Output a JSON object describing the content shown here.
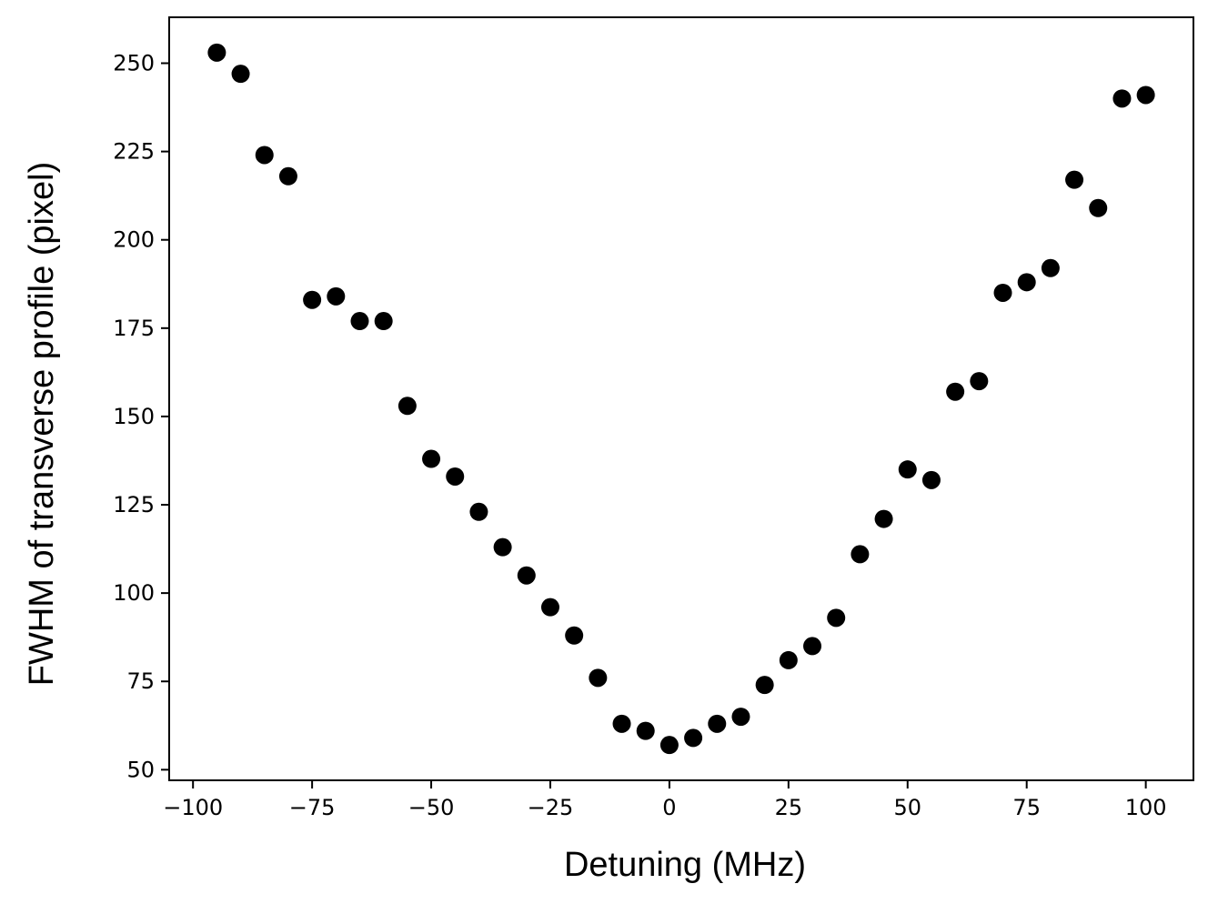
{
  "chart_data": {
    "type": "scatter",
    "xlabel": "Detuning (MHz)",
    "ylabel": "FWHM of transverse profile (pixel)",
    "xlim": [
      -105,
      110
    ],
    "ylim": [
      47,
      263
    ],
    "grid": false,
    "marker_color": "#000000",
    "x_ticks": [
      -100,
      -75,
      -50,
      -25,
      0,
      25,
      50,
      75,
      100
    ],
    "x_tick_labels": [
      "−100",
      "−75",
      "−50",
      "−25",
      "0",
      "25",
      "50",
      "75",
      "100"
    ],
    "y_ticks": [
      50,
      75,
      100,
      125,
      150,
      175,
      200,
      225,
      250
    ],
    "y_tick_labels": [
      "50",
      "75",
      "100",
      "125",
      "150",
      "175",
      "200",
      "225",
      "250"
    ],
    "x": [
      -95,
      -90,
      -85,
      -80,
      -75,
      -70,
      -65,
      -60,
      -55,
      -50,
      -45,
      -40,
      -35,
      -30,
      -25,
      -20,
      -15,
      -10,
      -5,
      0,
      5,
      10,
      15,
      20,
      25,
      30,
      35,
      40,
      45,
      50,
      55,
      60,
      65,
      70,
      75,
      80,
      85,
      90,
      95,
      100
    ],
    "y": [
      253,
      247,
      224,
      218,
      183,
      184,
      177,
      177,
      153,
      138,
      133,
      123,
      113,
      105,
      96,
      88,
      76,
      63,
      61,
      57,
      59,
      63,
      65,
      74,
      81,
      85,
      93,
      111,
      121,
      135,
      132,
      157,
      160,
      185,
      188,
      192,
      217,
      209,
      240,
      241
    ]
  }
}
